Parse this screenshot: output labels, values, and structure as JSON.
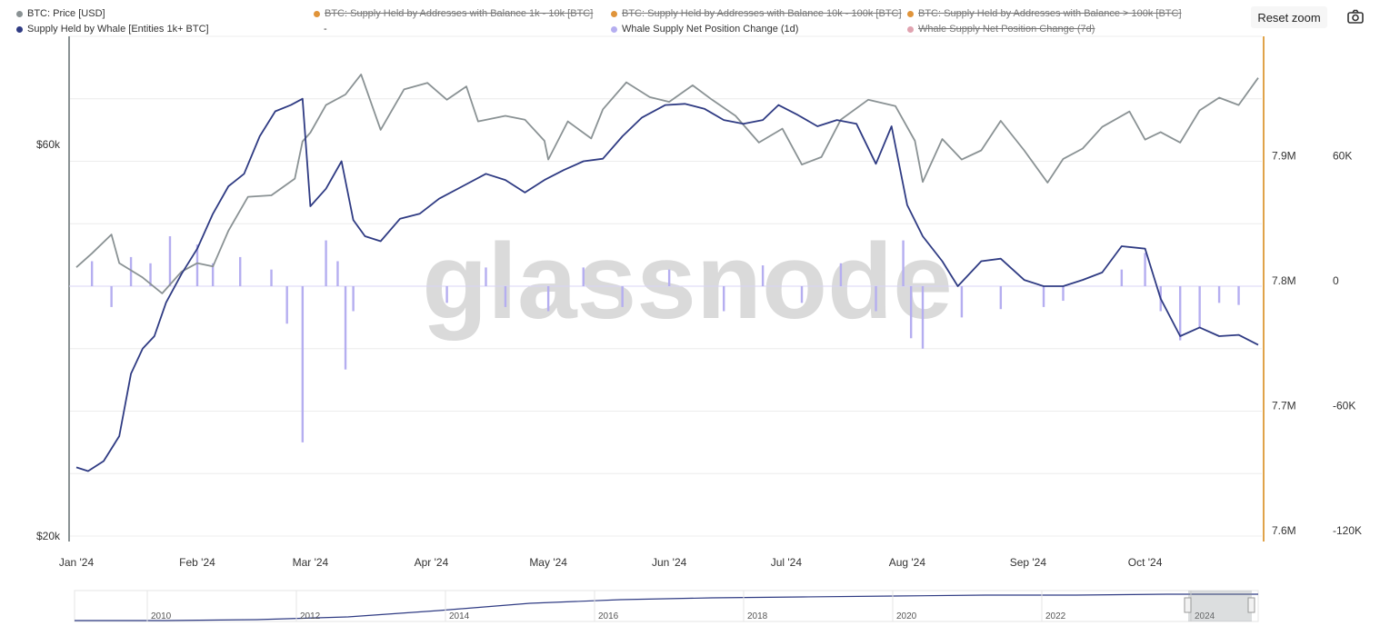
{
  "toolbar": {
    "reset_zoom": "Reset zoom",
    "export_icon": "camera-icon"
  },
  "legend": {
    "items": [
      {
        "label": "BTC: Price [USD]",
        "color": "#8a9294",
        "enabled": true
      },
      {
        "label": "Supply Held by Whale [Entities 1k+ BTC]",
        "color": "#2f3b83",
        "enabled": true
      },
      {
        "label": "BTC: Supply Held by Addresses with Balance 1k - 10k [BTC]",
        "color": "#e0943a",
        "enabled": false
      },
      {
        "label": "-",
        "color": "",
        "enabled": true
      },
      {
        "label": "BTC: Supply Held by Addresses with Balance 10k - 100k [BTC]",
        "color": "#e0943a",
        "enabled": false
      },
      {
        "label": "Whale Supply Net Position Change (1d)",
        "color": "#b5aef0",
        "enabled": true
      },
      {
        "label": "BTC: Supply Held by Addresses with Balance > 100k [BTC]",
        "color": "#e0943a",
        "enabled": false
      },
      {
        "label": "Whale Supply Net Position Change (7d)",
        "color": "#e0a3b0",
        "enabled": false
      }
    ]
  },
  "watermark": "glassnode",
  "chart_data": {
    "type": "line",
    "x_ticks": [
      "Jan '24",
      "Feb '24",
      "Mar '24",
      "Apr '24",
      "May '24",
      "Jun '24",
      "Jul '24",
      "Aug '24",
      "Sep '24",
      "Oct '24"
    ],
    "x_range": [
      "2024-01-01",
      "2024-10-30"
    ],
    "axes": {
      "price": {
        "position": "left",
        "scale": "log",
        "range": [
          20000,
          80000
        ],
        "ticks": [
          "$20k",
          "$60k"
        ]
      },
      "supply": {
        "position": "right",
        "range": [
          7.6,
          8.0
        ],
        "unit": "M BTC",
        "ticks": [
          "7.6M",
          "7.7M",
          "7.8M",
          "7.9M"
        ]
      },
      "change": {
        "position": "right-outer",
        "range": [
          -120000,
          120000
        ],
        "ticks": [
          "-120K",
          "-60K",
          "0",
          "60K"
        ]
      }
    },
    "series": [
      {
        "name": "BTC: Price [USD]",
        "axis": "price",
        "color": "#8a9294",
        "points": [
          [
            "2024-01-01",
            42500
          ],
          [
            "2024-01-05",
            44200
          ],
          [
            "2024-01-10",
            46600
          ],
          [
            "2024-01-12",
            43000
          ],
          [
            "2024-01-18",
            41300
          ],
          [
            "2024-01-23",
            39500
          ],
          [
            "2024-01-28",
            42000
          ],
          [
            "2024-02-01",
            43000
          ],
          [
            "2024-02-05",
            42600
          ],
          [
            "2024-02-09",
            47100
          ],
          [
            "2024-02-14",
            51800
          ],
          [
            "2024-02-20",
            52000
          ],
          [
            "2024-02-26",
            54500
          ],
          [
            "2024-02-28",
            60500
          ],
          [
            "2024-03-01",
            62000
          ],
          [
            "2024-03-05",
            67000
          ],
          [
            "2024-03-10",
            69000
          ],
          [
            "2024-03-14",
            73000
          ],
          [
            "2024-03-19",
            62500
          ],
          [
            "2024-03-25",
            70000
          ],
          [
            "2024-03-31",
            71300
          ],
          [
            "2024-04-05",
            68000
          ],
          [
            "2024-04-10",
            70600
          ],
          [
            "2024-04-13",
            64000
          ],
          [
            "2024-04-20",
            65000
          ],
          [
            "2024-04-25",
            64300
          ],
          [
            "2024-04-30",
            60600
          ],
          [
            "2024-05-01",
            57500
          ],
          [
            "2024-05-06",
            64000
          ],
          [
            "2024-05-12",
            61000
          ],
          [
            "2024-05-15",
            66200
          ],
          [
            "2024-05-21",
            71400
          ],
          [
            "2024-05-27",
            68500
          ],
          [
            "2024-06-01",
            67600
          ],
          [
            "2024-06-07",
            70800
          ],
          [
            "2024-06-12",
            68000
          ],
          [
            "2024-06-18",
            65000
          ],
          [
            "2024-06-24",
            60300
          ],
          [
            "2024-06-30",
            62700
          ],
          [
            "2024-07-05",
            56700
          ],
          [
            "2024-07-10",
            57900
          ],
          [
            "2024-07-15",
            64300
          ],
          [
            "2024-07-22",
            68000
          ],
          [
            "2024-07-29",
            66800
          ],
          [
            "2024-08-03",
            60600
          ],
          [
            "2024-08-05",
            54000
          ],
          [
            "2024-08-10",
            60900
          ],
          [
            "2024-08-15",
            57500
          ],
          [
            "2024-08-20",
            59000
          ],
          [
            "2024-08-25",
            64100
          ],
          [
            "2024-08-31",
            59000
          ],
          [
            "2024-09-06",
            53900
          ],
          [
            "2024-09-10",
            57600
          ],
          [
            "2024-09-15",
            59300
          ],
          [
            "2024-09-20",
            63000
          ],
          [
            "2024-09-27",
            65800
          ],
          [
            "2024-10-01",
            60800
          ],
          [
            "2024-10-05",
            62100
          ],
          [
            "2024-10-10",
            60300
          ],
          [
            "2024-10-15",
            66000
          ],
          [
            "2024-10-20",
            68400
          ],
          [
            "2024-10-25",
            67000
          ],
          [
            "2024-10-30",
            72300
          ]
        ]
      },
      {
        "name": "Supply Held by Whale [Entities 1k+ BTC]",
        "axis": "supply",
        "color": "#2f3b83",
        "points": [
          [
            "2024-01-01",
            7.655
          ],
          [
            "2024-01-04",
            7.652
          ],
          [
            "2024-01-08",
            7.66
          ],
          [
            "2024-01-12",
            7.68
          ],
          [
            "2024-01-15",
            7.73
          ],
          [
            "2024-01-18",
            7.75
          ],
          [
            "2024-01-21",
            7.76
          ],
          [
            "2024-01-24",
            7.787
          ],
          [
            "2024-01-28",
            7.81
          ],
          [
            "2024-02-01",
            7.83
          ],
          [
            "2024-02-05",
            7.858
          ],
          [
            "2024-02-09",
            7.88
          ],
          [
            "2024-02-13",
            7.89
          ],
          [
            "2024-02-17",
            7.92
          ],
          [
            "2024-02-21",
            7.94
          ],
          [
            "2024-02-25",
            7.945
          ],
          [
            "2024-02-28",
            7.95
          ],
          [
            "2024-03-01",
            7.864
          ],
          [
            "2024-03-05",
            7.878
          ],
          [
            "2024-03-09",
            7.9
          ],
          [
            "2024-03-12",
            7.853
          ],
          [
            "2024-03-15",
            7.84
          ],
          [
            "2024-03-19",
            7.836
          ],
          [
            "2024-03-24",
            7.854
          ],
          [
            "2024-03-29",
            7.858
          ],
          [
            "2024-04-03",
            7.87
          ],
          [
            "2024-04-09",
            7.88
          ],
          [
            "2024-04-15",
            7.89
          ],
          [
            "2024-04-20",
            7.885
          ],
          [
            "2024-04-25",
            7.875
          ],
          [
            "2024-04-30",
            7.885
          ],
          [
            "2024-05-05",
            7.893
          ],
          [
            "2024-05-10",
            7.9
          ],
          [
            "2024-05-15",
            7.902
          ],
          [
            "2024-05-20",
            7.92
          ],
          [
            "2024-05-25",
            7.935
          ],
          [
            "2024-05-31",
            7.945
          ],
          [
            "2024-06-05",
            7.946
          ],
          [
            "2024-06-10",
            7.942
          ],
          [
            "2024-06-15",
            7.933
          ],
          [
            "2024-06-20",
            7.93
          ],
          [
            "2024-06-25",
            7.933
          ],
          [
            "2024-06-29",
            7.945
          ],
          [
            "2024-07-04",
            7.937
          ],
          [
            "2024-07-09",
            7.928
          ],
          [
            "2024-07-14",
            7.933
          ],
          [
            "2024-07-19",
            7.93
          ],
          [
            "2024-07-24",
            7.898
          ],
          [
            "2024-07-28",
            7.928
          ],
          [
            "2024-08-01",
            7.865
          ],
          [
            "2024-08-05",
            7.84
          ],
          [
            "2024-08-10",
            7.82
          ],
          [
            "2024-08-14",
            7.8
          ],
          [
            "2024-08-20",
            7.82
          ],
          [
            "2024-08-25",
            7.822
          ],
          [
            "2024-08-31",
            7.805
          ],
          [
            "2024-09-05",
            7.8
          ],
          [
            "2024-09-10",
            7.8
          ],
          [
            "2024-09-15",
            7.805
          ],
          [
            "2024-09-20",
            7.811
          ],
          [
            "2024-09-25",
            7.832
          ],
          [
            "2024-10-01",
            7.83
          ],
          [
            "2024-10-05",
            7.79
          ],
          [
            "2024-10-10",
            7.76
          ],
          [
            "2024-10-15",
            7.767
          ],
          [
            "2024-10-20",
            7.76
          ],
          [
            "2024-10-25",
            7.761
          ],
          [
            "2024-10-30",
            7.753
          ]
        ]
      },
      {
        "name": "Whale Supply Net Position Change (1d)",
        "axis": "change",
        "type": "bar",
        "color": "#b5aef0",
        "points": [
          [
            "2024-01-05",
            12000
          ],
          [
            "2024-01-10",
            -10000
          ],
          [
            "2024-01-15",
            14000
          ],
          [
            "2024-01-20",
            11000
          ],
          [
            "2024-01-25",
            24000
          ],
          [
            "2024-02-01",
            20000
          ],
          [
            "2024-02-05",
            11000
          ],
          [
            "2024-02-12",
            14000
          ],
          [
            "2024-02-20",
            8000
          ],
          [
            "2024-02-24",
            -18000
          ],
          [
            "2024-02-28",
            -75000
          ],
          [
            "2024-03-05",
            22000
          ],
          [
            "2024-03-08",
            12000
          ],
          [
            "2024-03-10",
            -40000
          ],
          [
            "2024-03-12",
            -12000
          ],
          [
            "2024-04-05",
            -8000
          ],
          [
            "2024-04-15",
            9000
          ],
          [
            "2024-04-20",
            -10000
          ],
          [
            "2024-05-01",
            -12000
          ],
          [
            "2024-05-10",
            9000
          ],
          [
            "2024-05-20",
            -10000
          ],
          [
            "2024-06-01",
            8000
          ],
          [
            "2024-06-15",
            -12000
          ],
          [
            "2024-06-25",
            10000
          ],
          [
            "2024-07-05",
            -8000
          ],
          [
            "2024-07-15",
            11000
          ],
          [
            "2024-07-24",
            -12000
          ],
          [
            "2024-07-31",
            22000
          ],
          [
            "2024-08-02",
            -25000
          ],
          [
            "2024-08-05",
            -30000
          ],
          [
            "2024-08-15",
            -15000
          ],
          [
            "2024-08-25",
            -11000
          ],
          [
            "2024-09-05",
            -10000
          ],
          [
            "2024-09-10",
            -7000
          ],
          [
            "2024-09-25",
            8000
          ],
          [
            "2024-10-01",
            16000
          ],
          [
            "2024-10-05",
            -12000
          ],
          [
            "2024-10-10",
            -26000
          ],
          [
            "2024-10-15",
            -20000
          ],
          [
            "2024-10-20",
            -8000
          ],
          [
            "2024-10-25",
            -9000
          ]
        ]
      }
    ],
    "navigator": {
      "labels": [
        "2010",
        "2012",
        "2014",
        "2016",
        "2018",
        "2020",
        "2022",
        "2024"
      ]
    }
  }
}
